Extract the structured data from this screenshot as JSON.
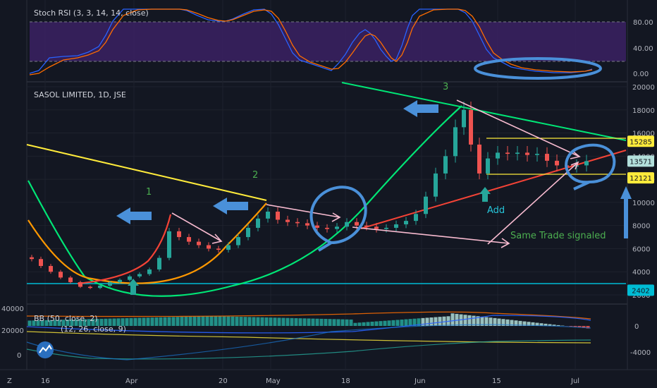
{
  "stoch_pane": {
    "title": "Stoch RSI (3, 3, 14, 14, close)",
    "y_ticks": [
      "80.00",
      "40.00",
      "0.00"
    ],
    "band_upper": 80,
    "band_lower": 20,
    "k_color": "#2962ff",
    "d_color": "#ff6d00",
    "band_fill": "#4a2a73"
  },
  "price_pane": {
    "title": "SASOL LIMITED, 1D, JSE",
    "y_ticks": [
      "20000",
      "18000",
      "16000",
      "14000",
      "12000",
      "10000",
      "8000",
      "6000",
      "4000",
      "2000"
    ],
    "price_tags": [
      {
        "label": "15285",
        "value": 15285,
        "bg": "#ffeb3b",
        "fg": "#131722"
      },
      {
        "label": "13571",
        "value": 13571,
        "bg": "#b2dfdb",
        "fg": "#131722"
      },
      {
        "label": "12121",
        "value": 12121,
        "bg": "#ffeb3b",
        "fg": "#131722"
      },
      {
        "label": "2402",
        "value": 2402,
        "bg": "#00bcd4",
        "fg": "#131722"
      }
    ],
    "annotations": [
      {
        "text": "1",
        "color": "#4caf50"
      },
      {
        "text": "2",
        "color": "#4caf50"
      },
      {
        "text": "3",
        "color": "#4caf50"
      },
      {
        "text": "Add",
        "color": "#26c6da"
      },
      {
        "text": "Same Trade signaled",
        "color": "#4caf50"
      }
    ]
  },
  "bb_pane": {
    "title": "BB (50, close, 2)",
    "subtitle": "(12, 26, close, 9)",
    "left_ticks": [
      "40000",
      "20000",
      "0"
    ],
    "right_ticks": [
      "0",
      "-4000"
    ]
  },
  "time_axis": {
    "labels": [
      "16",
      "Apr",
      "20",
      "May",
      "18",
      "Jun",
      "15",
      "Jul"
    ]
  },
  "corner_label": "Z",
  "colors": {
    "up": "#26a69a",
    "down": "#ef5350",
    "background": "#131722"
  },
  "chart_data": {
    "type": "candlestick",
    "title": "SASOL LIMITED, 1D, JSE",
    "ylim": [
      2000,
      20000
    ],
    "series": [
      {
        "name": "price",
        "points": [
          {
            "x": 45,
            "y": 5100
          },
          {
            "x": 58,
            "y": 4500
          },
          {
            "x": 72,
            "y": 4000
          },
          {
            "x": 86,
            "y": 3500
          },
          {
            "x": 100,
            "y": 3100
          },
          {
            "x": 114,
            "y": 2700
          },
          {
            "x": 128,
            "y": 2600
          },
          {
            "x": 142,
            "y": 2800
          },
          {
            "x": 156,
            "y": 3100
          },
          {
            "x": 170,
            "y": 3300
          },
          {
            "x": 184,
            "y": 3600
          },
          {
            "x": 198,
            "y": 3800
          },
          {
            "x": 212,
            "y": 4200
          },
          {
            "x": 226,
            "y": 5200
          },
          {
            "x": 240,
            "y": 7500
          },
          {
            "x": 254,
            "y": 7000
          },
          {
            "x": 268,
            "y": 6600
          },
          {
            "x": 282,
            "y": 6300
          },
          {
            "x": 296,
            "y": 6000
          },
          {
            "x": 310,
            "y": 5900
          },
          {
            "x": 324,
            "y": 6300
          },
          {
            "x": 338,
            "y": 7000
          },
          {
            "x": 352,
            "y": 7800
          },
          {
            "x": 366,
            "y": 8600
          },
          {
            "x": 380,
            "y": 9200
          },
          {
            "x": 394,
            "y": 8500
          },
          {
            "x": 408,
            "y": 8300
          },
          {
            "x": 422,
            "y": 8200
          },
          {
            "x": 436,
            "y": 8000
          },
          {
            "x": 450,
            "y": 7800
          },
          {
            "x": 464,
            "y": 7700
          },
          {
            "x": 478,
            "y": 7900
          },
          {
            "x": 492,
            "y": 8300
          },
          {
            "x": 506,
            "y": 8000
          },
          {
            "x": 520,
            "y": 7900
          },
          {
            "x": 534,
            "y": 7700
          },
          {
            "x": 548,
            "y": 7800
          },
          {
            "x": 562,
            "y": 8100
          },
          {
            "x": 576,
            "y": 8400
          },
          {
            "x": 590,
            "y": 9000
          },
          {
            "x": 604,
            "y": 10500
          },
          {
            "x": 618,
            "y": 12500
          },
          {
            "x": 632,
            "y": 14000
          },
          {
            "x": 646,
            "y": 16500
          },
          {
            "x": 658,
            "y": 18000
          },
          {
            "x": 668,
            "y": 15000
          },
          {
            "x": 680,
            "y": 12500
          },
          {
            "x": 692,
            "y": 13800
          },
          {
            "x": 706,
            "y": 14300
          },
          {
            "x": 720,
            "y": 14200
          },
          {
            "x": 734,
            "y": 14300
          },
          {
            "x": 748,
            "y": 14100
          },
          {
            "x": 762,
            "y": 14200
          },
          {
            "x": 776,
            "y": 13600
          },
          {
            "x": 790,
            "y": 13200
          },
          {
            "x": 804,
            "y": 13100
          },
          {
            "x": 818,
            "y": 13200
          },
          {
            "x": 832,
            "y": 13571
          }
        ]
      }
    ]
  }
}
